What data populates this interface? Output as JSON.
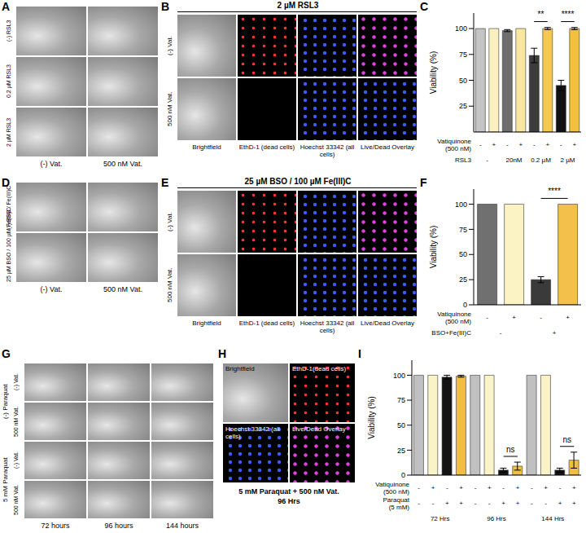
{
  "panels": {
    "A": {
      "letter": "A",
      "rows": [
        "(-) RSL3",
        "0.2 µM RSL3",
        "2 µM RSL3"
      ],
      "columns": [
        "(-) Vat.",
        "500 nM Vat."
      ]
    },
    "B": {
      "letter": "B",
      "title": "2 µM RSL3",
      "rows": [
        "(-) Vat.",
        "500 nM Vat."
      ],
      "columns": [
        "Brightfield",
        "EthD-1 (dead cells)",
        "Hoechst 33342 (all cells)",
        "Live/Dead Overlay"
      ]
    },
    "D": {
      "letter": "D",
      "rows": [
        "(-) BSO / Fe(III)C",
        "25 µM BSO / 100 µM Fe(III)C"
      ],
      "columns": [
        "(-) Vat.",
        "500 nM Vat."
      ]
    },
    "E": {
      "letter": "E",
      "title": "25 µM BSO / 100 µM Fe(III)C",
      "rows": [
        "(-) Vat.",
        "500 nM Vat."
      ],
      "columns": [
        "Brightfield",
        "EthD-1 (dead cells)",
        "Hoechst 33342 (all cells)",
        "Live/Dead Overlay"
      ]
    },
    "G": {
      "letter": "G",
      "groups": [
        {
          "label": "(-) Paraquat",
          "rows": [
            "(-) Vat.",
            "500 nM Vat."
          ]
        },
        {
          "label": "5 mM Paraquat",
          "rows": [
            "(-) Vat.",
            "500 nM Vat."
          ]
        }
      ],
      "columns": [
        "72 hours",
        "96 hours",
        "144 hours"
      ]
    },
    "H": {
      "letter": "H",
      "images": [
        "Brightfield",
        "EthD-1(dead cells)",
        "Hoechst 33342 (all cells)",
        "Live/Dead Overlay"
      ],
      "caption": [
        "5 mM Paraquat + 500 nM Vat.",
        "96 Hrs"
      ]
    }
  },
  "chart_data": [
    {
      "type": "bar",
      "letter": "C",
      "y_label": "Viability (%)",
      "ylim": [
        0,
        115
      ],
      "yticks": [
        25,
        50,
        75,
        100
      ],
      "values": [
        100,
        100,
        98,
        100,
        74,
        100,
        45,
        100
      ],
      "errors": [
        null,
        null,
        1,
        null,
        7,
        1,
        5,
        1
      ],
      "colors": [
        "#c4c4c4",
        "#fbf0c0",
        "#6e6e6e",
        "#f9e7a0",
        "#3c3c3c",
        "#f5c94f",
        "#111111",
        "#f2bf3e"
      ],
      "label_rows": [
        {
          "title": "Vatiquinone (500 nM)",
          "labels": [
            "-",
            "+",
            "-",
            "+",
            "-",
            "+",
            "-",
            "+"
          ]
        },
        {
          "title": "RSL3",
          "labels": [
            "-",
            "20nM",
            "0.2 µM",
            "2 µM"
          ]
        }
      ],
      "significance": [
        {
          "bars": [
            4,
            5
          ],
          "label": "**"
        },
        {
          "bars": [
            6,
            7
          ],
          "label": "****"
        }
      ]
    },
    {
      "type": "bar",
      "letter": "F",
      "y_label": "Viability (%)",
      "ylim": [
        0,
        115
      ],
      "yticks": [
        0,
        25,
        50,
        75,
        100
      ],
      "values": [
        100,
        100,
        25,
        100
      ],
      "errors": [
        null,
        null,
        3,
        null
      ],
      "colors": [
        "#707070",
        "#fbf3c4",
        "#3a3a3a",
        "#f3c14b"
      ],
      "label_rows": [
        {
          "title": "Vatiquinone (500 nM)",
          "labels": [
            "-",
            "+",
            "-",
            "+"
          ]
        },
        {
          "title": "BSO+Fe(III)C",
          "labels": [
            "-",
            "+"
          ]
        }
      ],
      "significance": [
        {
          "bars": [
            2,
            3
          ],
          "label": "****"
        }
      ]
    },
    {
      "type": "bar",
      "letter": "I",
      "y_label": "Viability (%)",
      "ylim": [
        0,
        115
      ],
      "yticks": [
        0,
        25,
        50,
        75,
        100
      ],
      "values": [
        100,
        100,
        98,
        99,
        100,
        100,
        5,
        9,
        100,
        100,
        5,
        15
      ],
      "errors": [
        null,
        null,
        2,
        1,
        null,
        null,
        2,
        4,
        null,
        null,
        2,
        8
      ],
      "colors": [
        "#c0c0c0",
        "#fbf3c8",
        "#141414",
        "#f0bd45",
        "#c0c0c0",
        "#fbf3c8",
        "#141414",
        "#f0bd45",
        "#c0c0c0",
        "#fbf3c8",
        "#141414",
        "#f0bd45"
      ],
      "label_rows": [
        {
          "title": "Vatiquinone (500 nM)",
          "labels": [
            "-",
            "+",
            "-",
            "+",
            "-",
            "+",
            "-",
            "+",
            "-",
            "+",
            "-",
            "+"
          ]
        },
        {
          "title": "Paraquat (5 mM)",
          "labels": [
            "-",
            "-",
            "+",
            "+",
            "-",
            "-",
            "+",
            "+",
            "-",
            "-",
            "+",
            "+"
          ]
        },
        {
          "labels": [
            "72 Hrs",
            "96 Hrs",
            "144 Hrs"
          ]
        }
      ],
      "significance": [
        {
          "bars": [
            6,
            7
          ],
          "label": "ns"
        },
        {
          "bars": [
            10,
            11
          ],
          "label": "ns"
        }
      ]
    }
  ]
}
